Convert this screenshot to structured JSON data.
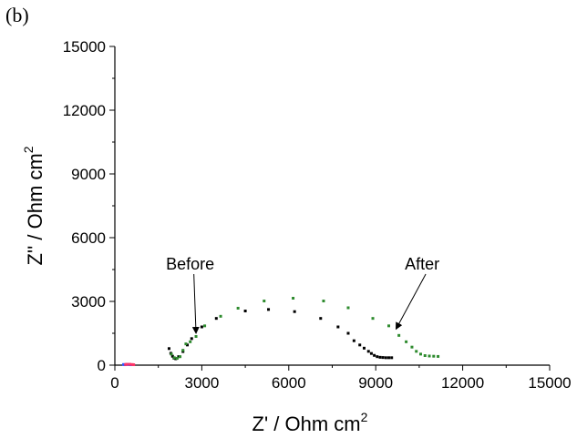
{
  "panel_label": "(b)",
  "chart_data": {
    "type": "scatter",
    "x_axis": {
      "title": "Z' / Ohm cm",
      "superscript": "2",
      "range": [
        0,
        15000
      ],
      "ticks": [
        0,
        3000,
        6000,
        9000,
        12000,
        15000
      ]
    },
    "y_axis": {
      "title": "Z'' / Ohm cm",
      "superscript": "2",
      "range": [
        0,
        15000
      ],
      "ticks": [
        0,
        3000,
        6000,
        9000,
        12000,
        15000
      ]
    },
    "grid": false,
    "series": [
      {
        "color": "#000000",
        "points": [
          [
            1870,
            780
          ],
          [
            1930,
            560
          ],
          [
            1990,
            420
          ],
          [
            2040,
            330
          ],
          [
            2100,
            300
          ],
          [
            2200,
            400
          ],
          [
            2350,
            640
          ],
          [
            2500,
            950
          ],
          [
            2650,
            1250
          ],
          [
            3000,
            1800
          ],
          [
            3500,
            2200
          ],
          [
            4500,
            2550
          ],
          [
            5300,
            2620
          ],
          [
            6200,
            2520
          ],
          [
            7100,
            2200
          ],
          [
            7700,
            1800
          ],
          [
            8050,
            1500
          ],
          [
            8250,
            1150
          ],
          [
            8450,
            950
          ],
          [
            8600,
            800
          ],
          [
            8750,
            650
          ],
          [
            8850,
            550
          ],
          [
            8950,
            460
          ],
          [
            9050,
            400
          ],
          [
            9150,
            370
          ],
          [
            9250,
            360
          ],
          [
            9350,
            350
          ],
          [
            9450,
            350
          ],
          [
            9550,
            350
          ]
        ]
      },
      {
        "color": "#2e8b2e",
        "points": [
          [
            1950,
            520
          ],
          [
            2050,
            350
          ],
          [
            2150,
            320
          ],
          [
            2250,
            400
          ],
          [
            2350,
            700
          ],
          [
            2450,
            1000
          ],
          [
            2600,
            1100
          ],
          [
            2800,
            1350
          ],
          [
            3100,
            1850
          ],
          [
            3650,
            2300
          ],
          [
            4250,
            2680
          ],
          [
            5150,
            3020
          ],
          [
            6150,
            3150
          ],
          [
            7200,
            3020
          ],
          [
            8050,
            2700
          ],
          [
            8900,
            2200
          ],
          [
            9450,
            1850
          ],
          [
            9800,
            1400
          ],
          [
            10050,
            1100
          ],
          [
            10250,
            850
          ],
          [
            10400,
            650
          ],
          [
            10550,
            520
          ],
          [
            10700,
            450
          ],
          [
            10850,
            430
          ],
          [
            11000,
            420
          ],
          [
            11150,
            410
          ]
        ]
      },
      {
        "color": "#3355ff",
        "points": [
          [
            300,
            30
          ],
          [
            350,
            20
          ],
          [
            400,
            40
          ],
          [
            450,
            30
          ],
          [
            500,
            30
          ],
          [
            550,
            20
          ]
        ]
      },
      {
        "color": "#ff3366",
        "points": [
          [
            370,
            30
          ],
          [
            420,
            40
          ],
          [
            520,
            40
          ],
          [
            600,
            30
          ],
          [
            650,
            20
          ]
        ]
      }
    ],
    "annotations": [
      {
        "text": "Before",
        "label_at": [
          2600,
          4500
        ],
        "arrow_to": [
          2800,
          1500
        ]
      },
      {
        "text": "After",
        "label_at": [
          10600,
          4500
        ],
        "arrow_to": [
          9700,
          1700
        ]
      }
    ]
  }
}
